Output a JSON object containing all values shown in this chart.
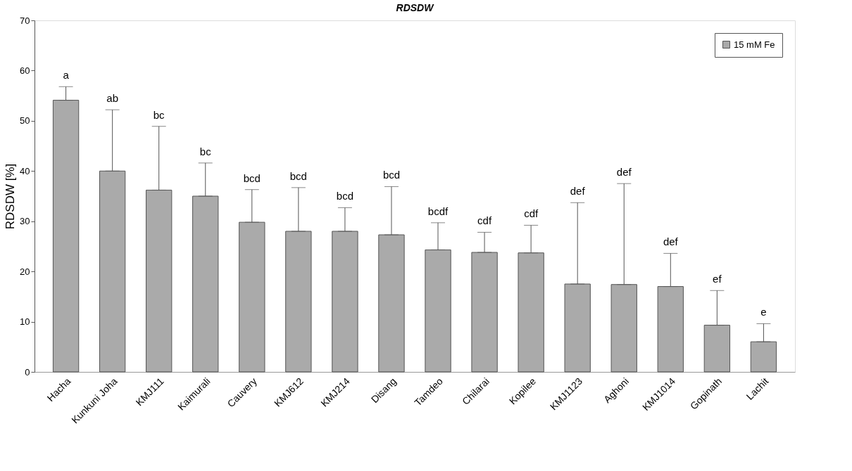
{
  "chart_data": {
    "type": "bar",
    "title": "RDSDW",
    "ylabel": "RDSDW [%]",
    "categories": [
      "Hacha",
      "Kunkuni Joha",
      "KMJ111",
      "Kaimurali",
      "Cauvery",
      "KMJ612",
      "KMJ214",
      "Disang",
      "Tamdeo",
      "Chilarai",
      "Kopilee",
      "KMJ1123",
      "Aghoni",
      "KMJ1014",
      "Gopinath",
      "Lachit"
    ],
    "series": [
      {
        "name": "15 mM Fe",
        "color": "#aaaaaa",
        "values": [
          54.1,
          40.0,
          36.2,
          35.0,
          29.8,
          28.0,
          28.0,
          27.3,
          24.3,
          23.8,
          23.7,
          17.5,
          17.4,
          17.0,
          9.3,
          6.0
        ],
        "errors": [
          [
            54.1,
            56.8
          ],
          [
            40.0,
            52.2
          ],
          [
            36.2,
            48.9
          ],
          [
            35.0,
            41.6
          ],
          [
            29.8,
            36.3
          ],
          [
            28.0,
            36.7
          ],
          [
            28.0,
            32.7
          ],
          [
            27.3,
            36.9
          ],
          [
            24.3,
            29.7
          ],
          [
            23.8,
            27.8
          ],
          [
            23.7,
            29.2
          ],
          [
            17.5,
            33.7
          ],
          [
            17.4,
            37.5
          ],
          [
            17.0,
            23.6
          ],
          [
            9.3,
            16.2
          ],
          [
            6.0,
            9.6
          ]
        ]
      }
    ],
    "annotations": [
      {
        "text": "a",
        "x": "Hacha",
        "y": 56.8
      },
      {
        "text": "ab",
        "x": "Kunkuni Joha",
        "y": 52.2
      },
      {
        "text": "bc",
        "x": "KMJ111",
        "y": 48.9
      },
      {
        "text": "bc",
        "x": "Kaimurali",
        "y": 41.6
      },
      {
        "text": "bcd",
        "x": "Cauvery",
        "y": 36.3
      },
      {
        "text": "bcd",
        "x": "KMJ612",
        "y": 36.7
      },
      {
        "text": "bcd",
        "x": "KMJ214",
        "y": 32.7
      },
      {
        "text": "bcd",
        "x": "Disang",
        "y": 36.9
      },
      {
        "text": "bcdf",
        "x": "Tamdeo",
        "y": 29.7
      },
      {
        "text": "cdf",
        "x": "Chilarai",
        "y": 27.8
      },
      {
        "text": "cdf",
        "x": "Kopilee",
        "y": 29.2
      },
      {
        "text": "def",
        "x": "KMJ1123",
        "y": 33.7
      },
      {
        "text": "def",
        "x": "Aghoni",
        "y": 37.5
      },
      {
        "text": "def",
        "x": "KMJ1014",
        "y": 23.6
      },
      {
        "text": "ef",
        "x": "Gopinath",
        "y": 16.2
      },
      {
        "text": "e",
        "x": "Lachit",
        "y": 9.6
      }
    ],
    "ylim": [
      0,
      70
    ],
    "yticks": [
      0,
      10,
      20,
      30,
      40,
      50,
      60,
      70
    ],
    "grid": false,
    "legend": "top right"
  }
}
